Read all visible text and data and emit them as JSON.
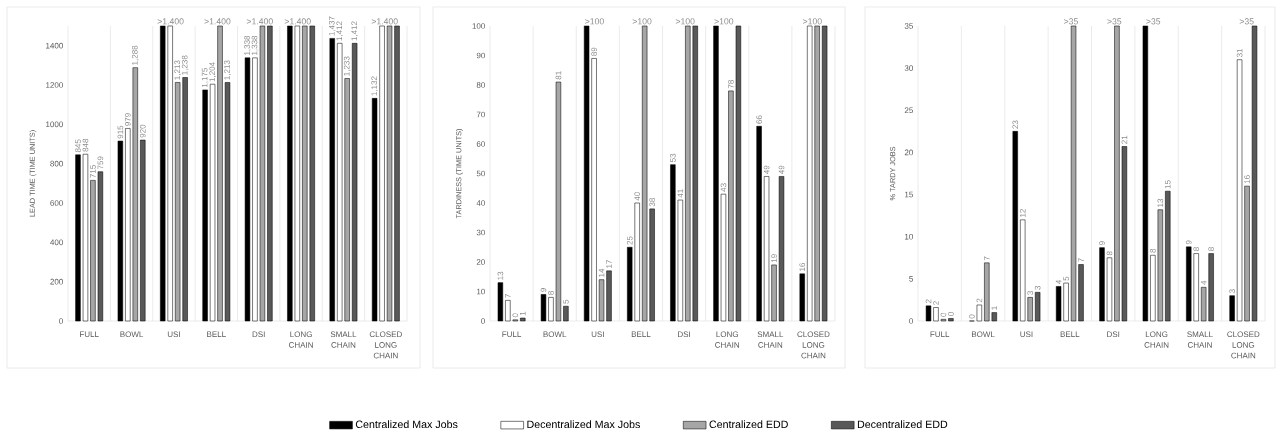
{
  "chart_data": [
    {
      "type": "bar",
      "ylabel": "LEAD TIME (TIME UNITS)",
      "categories": [
        "FULL",
        "BOWL",
        "USI",
        "BELL",
        "DSI",
        "LONG CHAIN",
        "SMALL CHAIN",
        "CLOSED LONG CHAIN"
      ],
      "series": [
        {
          "name": "Centralized Max Jobs",
          "color": "#000000",
          "values": [
            845,
            915,
            1500,
            1175,
            1338,
            1500,
            1437,
            1132
          ],
          "value_labels": [
            "845",
            "915",
            ">1.400",
            "1,175",
            "1,338",
            ">1.400",
            "1,437",
            "1,132"
          ]
        },
        {
          "name": "Decentralized Max Jobs",
          "color": "#ffffff",
          "values": [
            848,
            979,
            1500,
            1204,
            1338,
            1500,
            1412,
            1500
          ],
          "value_labels": [
            "848",
            "979",
            null,
            "1,204",
            "1,338",
            null,
            "1,412",
            ">1.400"
          ]
        },
        {
          "name": "Centralized EDD",
          "color": "#a6a6a6",
          "values": [
            715,
            1288,
            1213,
            1500,
            1500,
            1500,
            1233,
            1500
          ],
          "value_labels": [
            "715",
            "1,288",
            "1,213",
            ">1.400",
            ">1.400",
            null,
            "1,233",
            null
          ]
        },
        {
          "name": "Decentralized EDD",
          "color": "#595959",
          "values": [
            759,
            920,
            1238,
            1213,
            1500,
            1500,
            1412,
            1500
          ],
          "value_labels": [
            "759",
            "920",
            "1,238",
            "1,213",
            null,
            null,
            "1,412",
            null
          ]
        }
      ],
      "ylim": [
        0,
        1500
      ],
      "yticks": [
        0,
        200,
        400,
        600,
        800,
        1000,
        1200,
        1400
      ],
      "grid": "x",
      "legend": "bottom"
    },
    {
      "type": "bar",
      "ylabel": "TARDINESS (TIME UNITS)",
      "categories": [
        "FULL",
        "BOWL",
        "USI",
        "BELL",
        "DSI",
        "LONG CHAIN",
        "SMALL CHAIN",
        "CLOSED LONG CHAIN"
      ],
      "series": [
        {
          "color": "#000000",
          "values": [
            13,
            9,
            100,
            25,
            53,
            100,
            66,
            16
          ],
          "value_labels": [
            "13",
            "9",
            ">100",
            "25",
            "53",
            ">100",
            "66",
            "16"
          ]
        },
        {
          "color": "#ffffff",
          "values": [
            7,
            8,
            89,
            40,
            41,
            43,
            49,
            100
          ],
          "value_labels": [
            "7",
            "8",
            "89",
            "40",
            "41",
            "43",
            "49",
            ">100"
          ]
        },
        {
          "color": "#a6a6a6",
          "values": [
            0.4,
            81,
            14,
            100,
            100,
            78,
            19,
            100
          ],
          "value_labels": [
            "0",
            "81",
            "14",
            ">100",
            ">100",
            "78",
            "19",
            null
          ]
        },
        {
          "color": "#595959",
          "values": [
            1,
            5,
            17,
            38,
            100,
            100,
            49,
            100
          ],
          "value_labels": [
            "1",
            "5",
            "17",
            "38",
            null,
            null,
            "49",
            null
          ]
        }
      ],
      "ylim": [
        0,
        100
      ],
      "yticks": [
        0,
        10,
        20,
        30,
        40,
        50,
        60,
        70,
        80,
        90,
        100
      ],
      "grid": "x"
    },
    {
      "type": "bar",
      "ylabel": "% TARDY JOBS",
      "categories": [
        "FULL",
        "BOWL",
        "USI",
        "BELL",
        "DSI",
        "LONG CHAIN",
        "SMALL CHAIN",
        "CLOSED LONG CHAIN"
      ],
      "series": [
        {
          "color": "#000000",
          "values": [
            1.8,
            0,
            22.5,
            4.1,
            8.7,
            35,
            8.8,
            3.0
          ],
          "value_labels": [
            "2",
            "0",
            "23",
            "4",
            "9",
            ">35",
            "9",
            "3"
          ]
        },
        {
          "color": "#ffffff",
          "values": [
            1.6,
            1.9,
            12,
            4.5,
            7.5,
            7.8,
            8.0,
            31
          ],
          "value_labels": [
            "2",
            "2",
            "12",
            "5",
            "8",
            "8",
            "8",
            "31"
          ]
        },
        {
          "color": "#a6a6a6",
          "values": [
            0.2,
            6.9,
            2.8,
            35,
            35,
            13.2,
            4.0,
            16
          ],
          "value_labels": [
            "0",
            "7",
            "3",
            ">35",
            ">35",
            "13",
            "4",
            "16"
          ]
        },
        {
          "color": "#595959",
          "values": [
            0.3,
            1.0,
            3.4,
            6.7,
            20.7,
            15.4,
            8.0,
            35
          ],
          "value_labels": [
            "0",
            "1",
            "3",
            "7",
            "21",
            "15",
            "8",
            ">35"
          ]
        }
      ],
      "ylim": [
        0,
        35
      ],
      "yticks": [
        0,
        5,
        10,
        15,
        20,
        25,
        30,
        35
      ],
      "grid": "x"
    }
  ]
}
